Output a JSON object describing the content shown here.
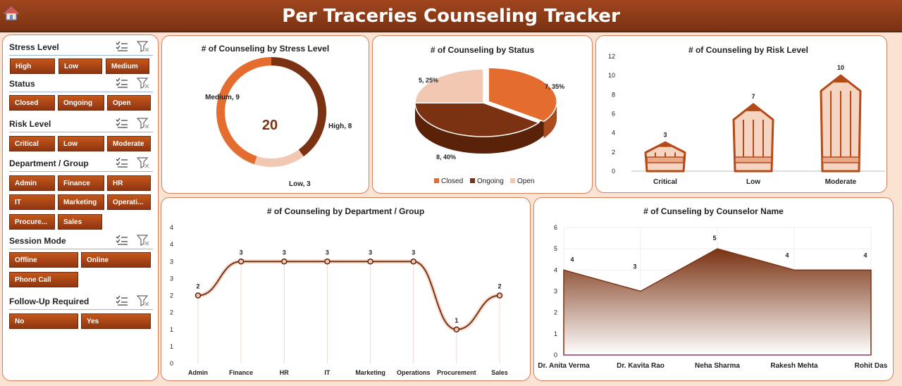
{
  "header": {
    "title": "Per Traceries Counseling Tracker",
    "home_icon": "home-icon"
  },
  "slicers": [
    {
      "title": "Stress Level",
      "options": [
        "High",
        "Low",
        "Medium"
      ]
    },
    {
      "title": "Status",
      "options": [
        "Closed",
        "Ongoing",
        "Open"
      ]
    },
    {
      "title": "Risk Level",
      "options": [
        "Critical",
        "Low",
        "Moderate"
      ]
    },
    {
      "title": "Department / Group",
      "options": [
        "Admin",
        "Finance",
        "HR",
        "IT",
        "Marketing",
        "Operati...",
        "Procure...",
        "Sales"
      ]
    },
    {
      "title": "Session Mode",
      "options": [
        "Offline",
        "Online",
        "Phone Call"
      ]
    },
    {
      "title": "Follow-Up Required",
      "options": [
        "No",
        "Yes"
      ]
    }
  ],
  "colors": {
    "dark": "#7a3212",
    "orange": "#e46c2e",
    "light": "#f3c8b2",
    "accent": "#a1461f"
  },
  "chart_data": [
    {
      "type": "pie",
      "title": "# of Counseling by Stress Level",
      "categories": [
        "High",
        "Low",
        "Medium"
      ],
      "values": [
        8,
        3,
        9
      ],
      "data_labels": [
        "High, 8",
        "Low, 3",
        "Medium, 9"
      ],
      "center_total": "20"
    },
    {
      "type": "pie",
      "title": "# of Counseling by Status",
      "categories": [
        "Closed",
        "Ongoing",
        "Open"
      ],
      "values": [
        7,
        8,
        5
      ],
      "data_labels": [
        "7, 35%",
        "8, 40%",
        "5, 25%"
      ],
      "legend": [
        "Closed",
        "Ongoing",
        "Open"
      ]
    },
    {
      "type": "bar",
      "title": "# of Counseling by Risk Level",
      "categories": [
        "Critical",
        "Low",
        "Moderate"
      ],
      "values": [
        3,
        7,
        10
      ],
      "ylim": [
        0,
        12
      ],
      "yticks": [
        "0",
        "2",
        "4",
        "6",
        "8",
        "10",
        "12"
      ]
    },
    {
      "type": "line",
      "title": "# of Counseling by Department / Group",
      "categories": [
        "Admin",
        "Finance",
        "HR",
        "IT",
        "Marketing",
        "Operations",
        "Procurement",
        "Sales"
      ],
      "values": [
        2,
        3,
        3,
        3,
        3,
        3,
        1,
        2
      ],
      "ylim": [
        0,
        4
      ],
      "yticks": [
        "0",
        "1",
        "1",
        "2",
        "2",
        "3",
        "3",
        "4",
        "4"
      ]
    },
    {
      "type": "area",
      "title": "# of Cunseling by Counselor Name",
      "categories": [
        "Dr. Anita Verma",
        "Dr. Kavita Rao",
        "Neha Sharma",
        "Rakesh Mehta",
        "Rohit Das"
      ],
      "values": [
        4,
        3,
        5,
        4,
        4
      ],
      "ylim": [
        0,
        6
      ],
      "yticks": [
        "0",
        "1",
        "2",
        "3",
        "4",
        "5",
        "6"
      ]
    }
  ]
}
